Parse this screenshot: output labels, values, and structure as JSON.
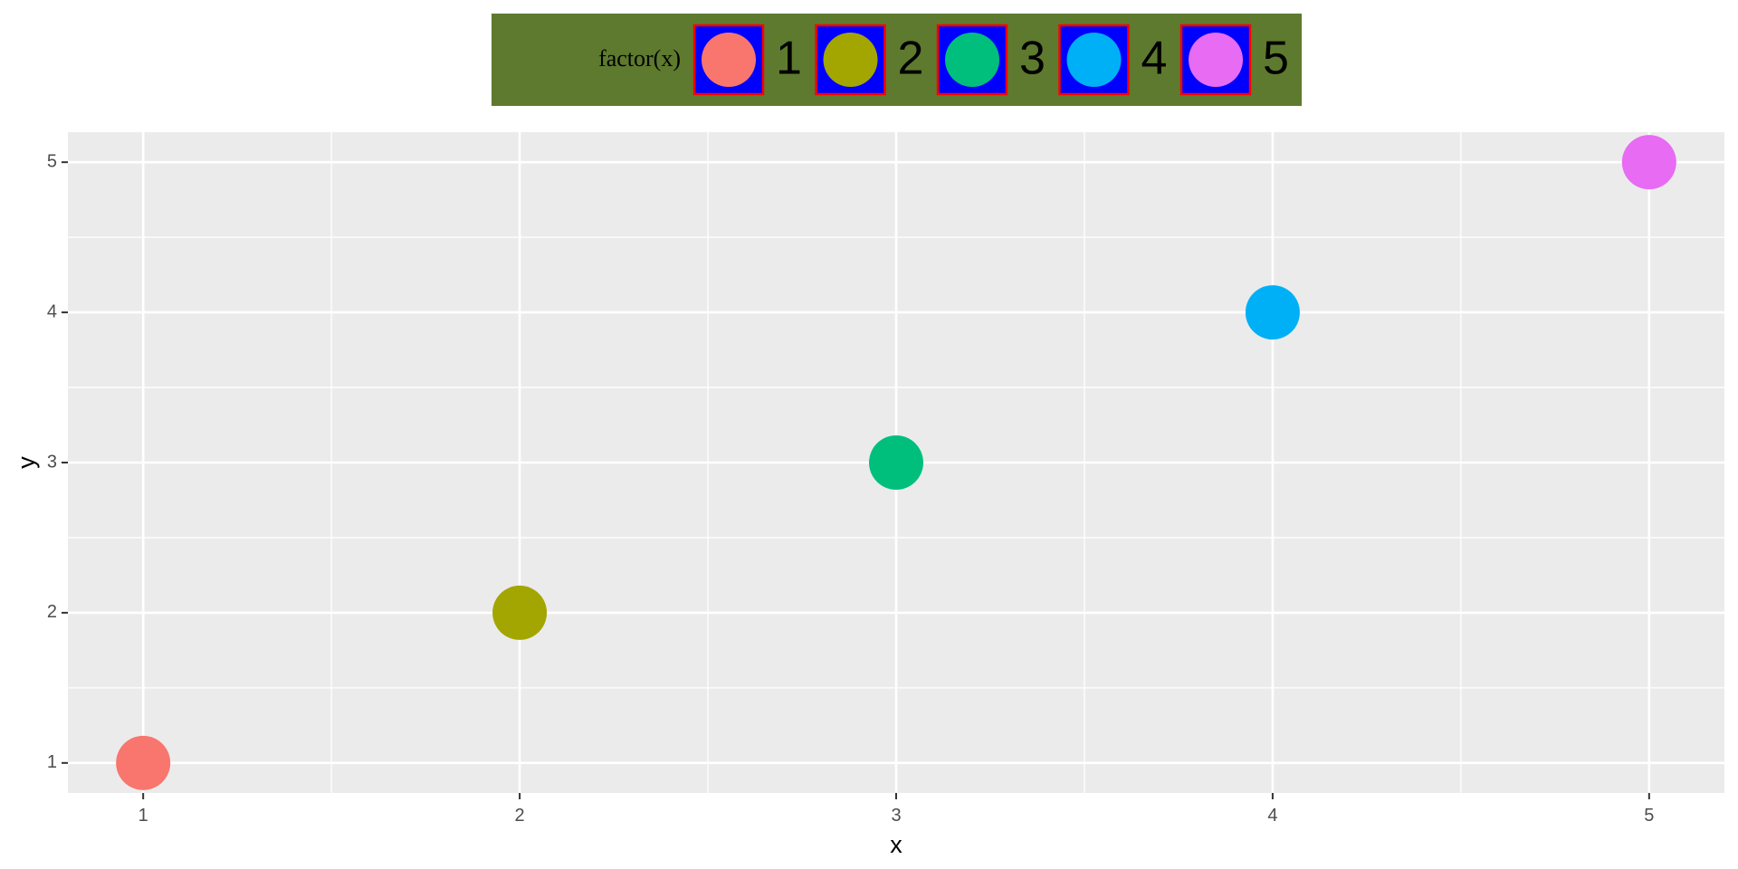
{
  "chart_data": {
    "type": "scatter",
    "title": "",
    "xlabel": "x",
    "ylabel": "y",
    "xlim": [
      0.8,
      5.2
    ],
    "ylim": [
      0.8,
      5.2
    ],
    "x_ticks": [
      "1",
      "2",
      "3",
      "4",
      "5"
    ],
    "y_ticks": [
      "1",
      "2",
      "3",
      "4",
      "5"
    ],
    "grid": true,
    "legend": {
      "title": "factor(x)",
      "position": "top",
      "background_color": "#5e7a2e",
      "key_fill": "#0000ff",
      "key_border": "#ff0000",
      "entries": [
        "1",
        "2",
        "3",
        "4",
        "5"
      ]
    },
    "series": [
      {
        "name": "1",
        "color": "#f8766d",
        "points": [
          {
            "x": 1,
            "y": 1
          }
        ]
      },
      {
        "name": "2",
        "color": "#a3a500",
        "points": [
          {
            "x": 2,
            "y": 2
          }
        ]
      },
      {
        "name": "3",
        "color": "#00bf7d",
        "points": [
          {
            "x": 3,
            "y": 3
          }
        ]
      },
      {
        "name": "4",
        "color": "#00b0f6",
        "points": [
          {
            "x": 4,
            "y": 4
          }
        ]
      },
      {
        "name": "5",
        "color": "#e76bf3",
        "points": [
          {
            "x": 5,
            "y": 5
          }
        ]
      }
    ],
    "panel_background": "#ebebeb",
    "grid_color": "#ffffff"
  }
}
